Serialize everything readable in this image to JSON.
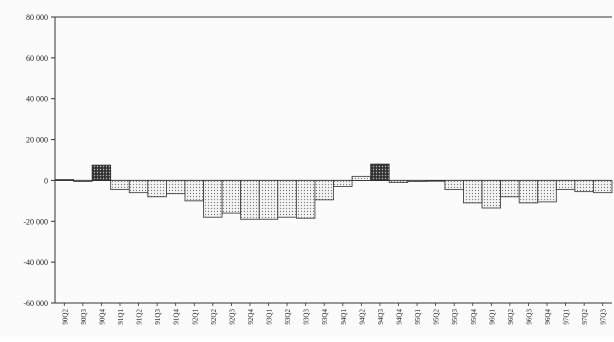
{
  "chart_data": {
    "type": "bar",
    "title": "",
    "xlabel": "",
    "ylabel": "",
    "ylim": [
      -60000,
      80000
    ],
    "y_ticks": [
      80000,
      60000,
      40000,
      20000,
      0,
      -20000,
      -40000,
      -60000
    ],
    "y_tick_labels": [
      "80 000",
      "60 000",
      "40 000",
      "20 000",
      "0",
      "-20 000",
      "-40 000",
      "-60 000"
    ],
    "grid": false,
    "legend": "none",
    "categories": [
      "90Q2",
      "90Q3",
      "90Q4",
      "91Q1",
      "91Q2",
      "91Q3",
      "91Q4",
      "92Q1",
      "92Q2",
      "92Q3",
      "92Q4",
      "93Q1",
      "93Q2",
      "93Q3",
      "93Q4",
      "94Q1",
      "94Q2",
      "94Q3",
      "94Q4",
      "95Q1",
      "95Q2",
      "95Q3",
      "95Q4",
      "96Q1",
      "96Q2",
      "96Q3",
      "96Q4",
      "97Q1",
      "97Q2",
      "97Q3"
    ],
    "values": [
      500,
      -500,
      7500,
      -4500,
      -6000,
      -8000,
      -6500,
      -10000,
      -18000,
      -16000,
      -19000,
      -19000,
      -18000,
      -18500,
      -9500,
      -3000,
      2000,
      8000,
      -1000,
      -500,
      -300,
      -4500,
      -11000,
      -13500,
      -8000,
      -11000,
      -10500,
      -4500,
      -5500,
      -6000
    ],
    "pattern_dark": [
      "90Q4",
      "94Q3"
    ],
    "colors": {
      "axis": "#333333",
      "bar_stroke": "#333333",
      "bar_fill_light": "#e6e6e6",
      "bar_fill_dark": "#444444"
    }
  }
}
